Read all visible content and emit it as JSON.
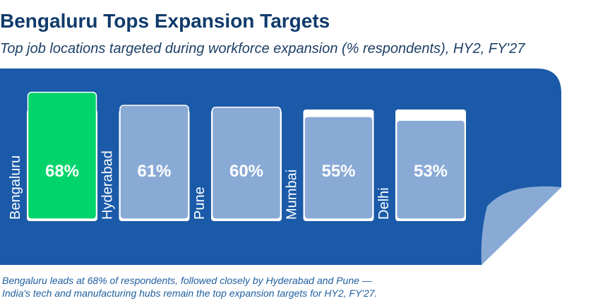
{
  "header": {
    "title": "Bengaluru Tops Expansion Targets",
    "subtitle": "Top job locations targeted during workforce expansion (% respondents), HY2, FY'27"
  },
  "footnote": {
    "line1": "Bengaluru leads at 68% of respondents, followed closely by Hyderabad and Pune —",
    "line2": "India's tech and manufacturing hubs remain the top expansion targets for HY2, FY'27."
  },
  "colors": {
    "panel": "#1a5aa8",
    "page_curl": "#8aaad6",
    "highlight_bar": "#00d46a",
    "bar": "#8aaad6",
    "bar_outline": "#ffffff",
    "label_text": "#ffffff"
  },
  "chart_data": {
    "type": "bar",
    "categories": [
      "Bengaluru",
      "Hyderabad",
      "Pune",
      "Mumbai",
      "Delhi"
    ],
    "values": [
      68,
      61,
      60,
      55,
      53
    ],
    "data_labels": [
      "68%",
      "61%",
      "60%",
      "55%",
      "53%"
    ],
    "highlight": "Bengaluru",
    "ylim": [
      0,
      80
    ],
    "grid": false,
    "legend": "none"
  }
}
